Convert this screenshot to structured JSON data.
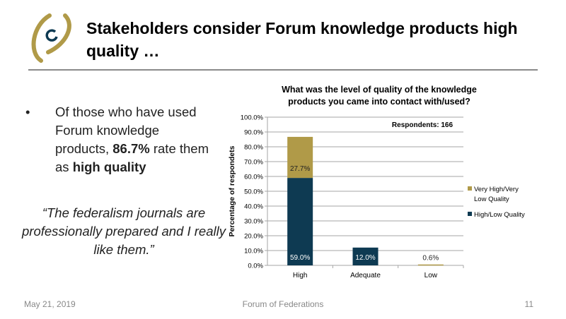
{
  "slide": {
    "title": "Stakeholders consider Forum knowledge products high quality …",
    "bullet_parts": [
      "Of those who have used Forum knowledge products, ",
      "86.7%",
      " rate them as ",
      "high quality"
    ],
    "bullet_marker": "•",
    "quote": "“The federalism journals are professionally prepared and I really like them.”",
    "footer_date": "May 21, 2019",
    "footer_org": "Forum of Federations",
    "page_number": "11",
    "logo_alt": "Forum of Federations logo"
  },
  "colors": {
    "gold": "#B09A48",
    "navy": "#0E3A52",
    "grid": "#A6A6A6"
  },
  "chart_data": {
    "type": "bar",
    "stacked": true,
    "title": "What was the level of quality of the knowledge products you came into contact with/used?",
    "title_lines": [
      "What was the level of quality of the knowledge",
      "products you came into contact with/used?"
    ],
    "ylabel": "Percentage of respondets",
    "xlabel": "",
    "ylim": [
      0,
      100
    ],
    "yticks": [
      "0.0%",
      "10.0%",
      "20.0%",
      "30.0%",
      "40.0%",
      "50.0%",
      "60.0%",
      "70.0%",
      "80.0%",
      "90.0%",
      "100.0%"
    ],
    "categories": [
      "High",
      "Adequate",
      "Low"
    ],
    "series": [
      {
        "name": "High/Low Quality",
        "color": "#0E3A52",
        "values": [
          59.0,
          12.0,
          0.0
        ],
        "labels": [
          "59.0%",
          "12.0%",
          ""
        ]
      },
      {
        "name": "Very High/Very Low Quality",
        "color": "#B09A48",
        "values": [
          27.7,
          0.0,
          0.6
        ],
        "labels": [
          "27.7%",
          "",
          "0.6%"
        ]
      }
    ],
    "legend_entries": [
      "Very High/Very Low Quality",
      "High/Low Quality"
    ],
    "legend_lines": [
      [
        "Very High/Very",
        "Low Quality"
      ],
      [
        "High/Low Quality"
      ]
    ],
    "legend_position": "right",
    "annotation": "Respondents: 166",
    "grid": true
  }
}
